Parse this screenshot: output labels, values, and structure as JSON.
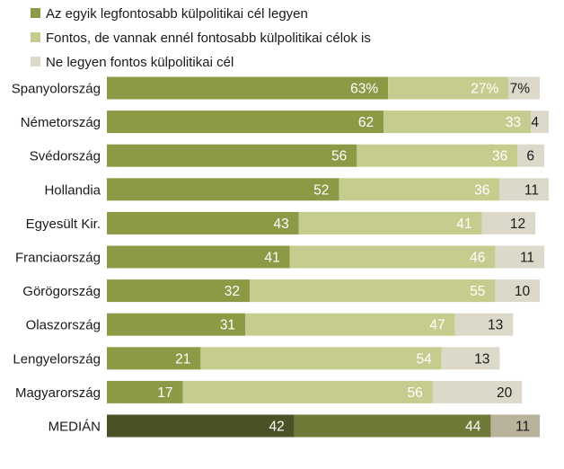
{
  "chart_data": {
    "type": "bar",
    "orientation": "horizontal",
    "stacked": true,
    "legend_position": "top-left",
    "series": [
      {
        "name": "Az egyik legfontosabb külpolitikai cél legyen",
        "color": "#8c9a45",
        "values": [
          63,
          62,
          56,
          52,
          43,
          41,
          32,
          31,
          21,
          17
        ]
      },
      {
        "name": "Fontos, de vannak ennél fontosabb külpolitikai célok is",
        "color": "#c6cc8d",
        "values": [
          27,
          33,
          36,
          36,
          41,
          46,
          55,
          47,
          54,
          56
        ]
      },
      {
        "name": "Ne legyen fontos külpolitikai cél",
        "color": "#dcd9cb",
        "values": [
          7,
          4,
          6,
          11,
          12,
          11,
          10,
          13,
          13,
          20
        ]
      }
    ],
    "categories": [
      "Spanyolország",
      "Németország",
      "Svédország",
      "Hollandia",
      "Egyesült Kir.",
      "Franciaország",
      "Görögország",
      "Olaszország",
      "Lengyelország",
      "Magyarország"
    ],
    "value_labels": [
      [
        "63%",
        "27%",
        "7%"
      ],
      [
        "62",
        "33",
        "4"
      ],
      [
        "56",
        "36",
        "6"
      ],
      [
        "52",
        "36",
        "11"
      ],
      [
        "43",
        "41",
        "12"
      ],
      [
        "41",
        "46",
        "11"
      ],
      [
        "32",
        "55",
        "10"
      ],
      [
        "31",
        "47",
        "13"
      ],
      [
        "21",
        "54",
        "13"
      ],
      [
        "17",
        "56",
        "20"
      ]
    ],
    "median": {
      "label": "MEDIÁN",
      "values": [
        42,
        44,
        11
      ],
      "value_labels": [
        "42",
        "44",
        "11"
      ],
      "colors": [
        "#4b5225",
        "#6f7a38",
        "#b8b39a"
      ]
    },
    "xlim": [
      0,
      100
    ]
  }
}
